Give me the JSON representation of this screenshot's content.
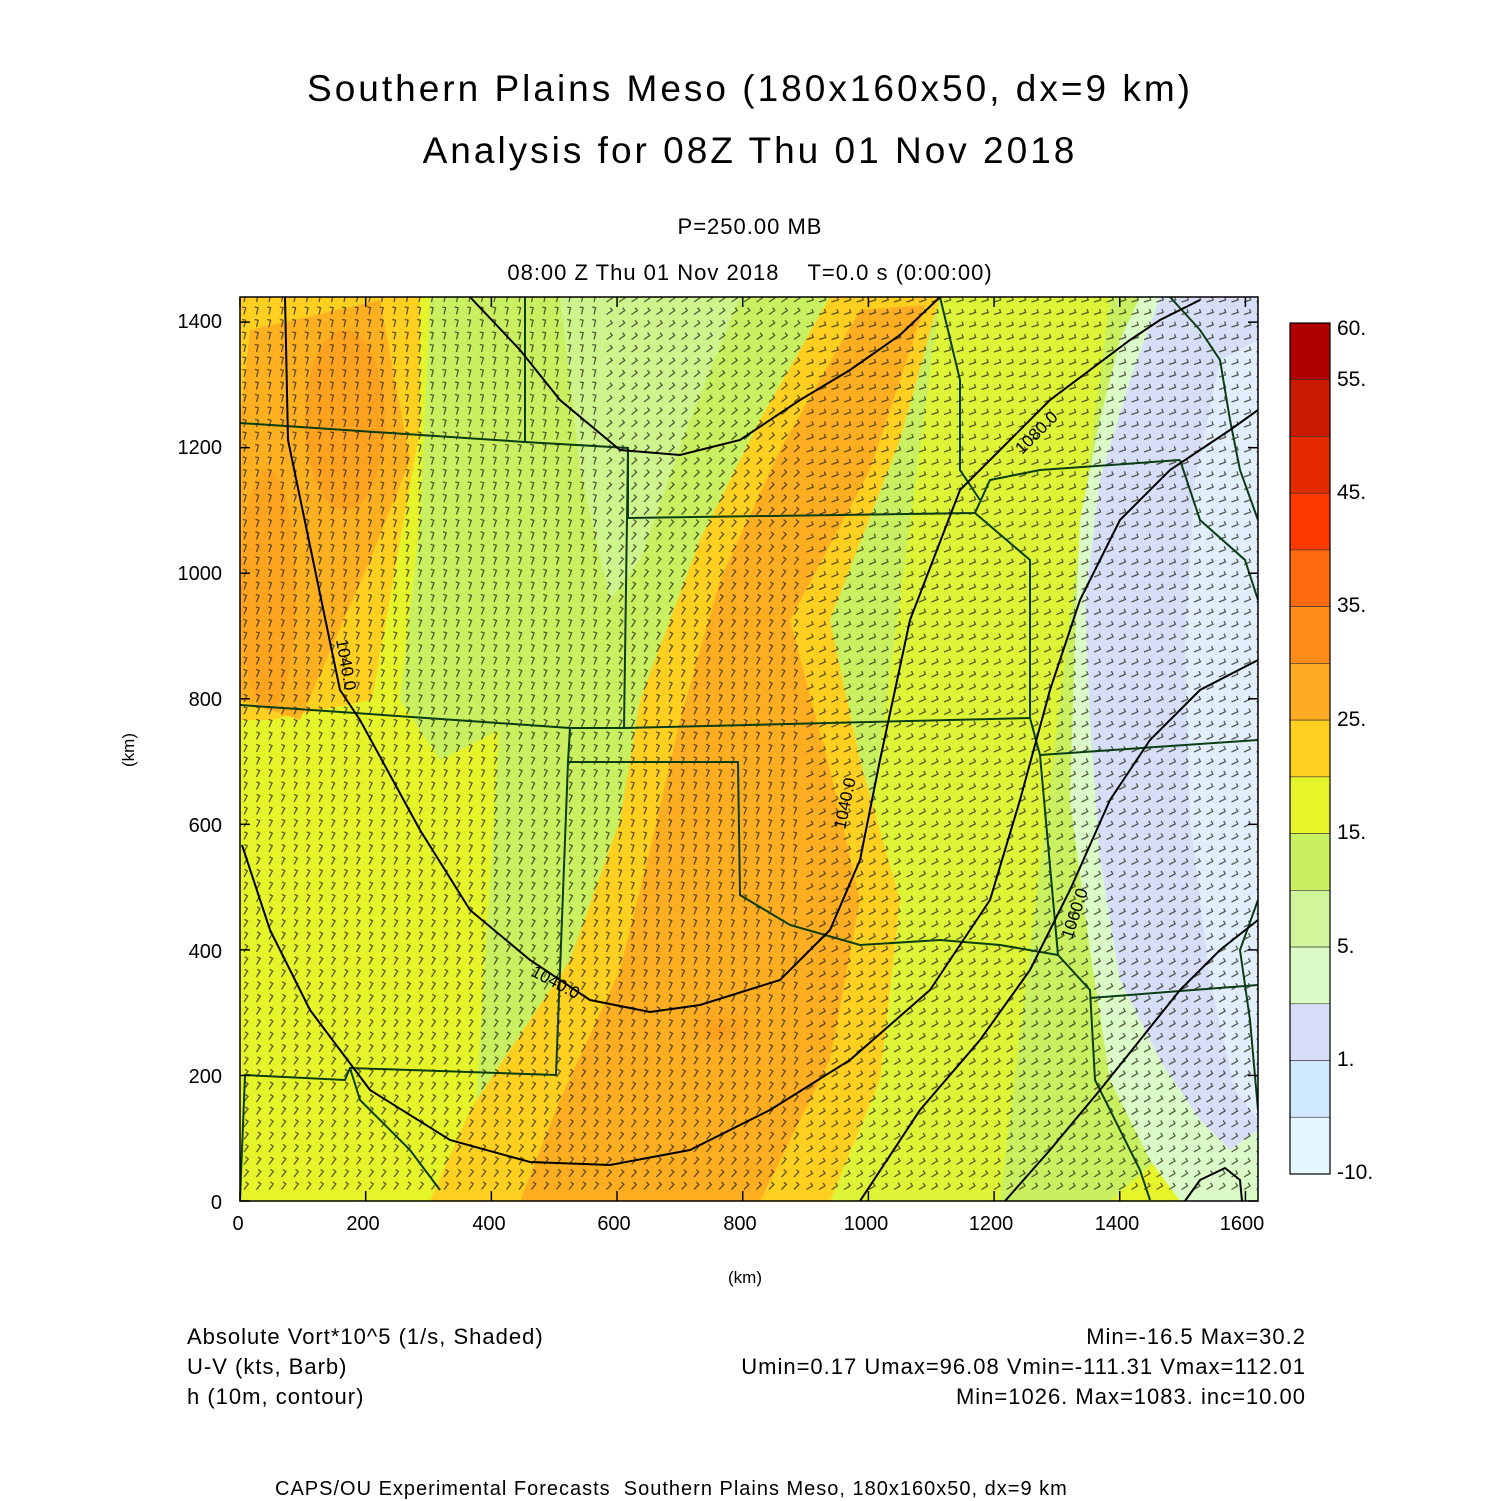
{
  "header": {
    "title_line1": "Southern Plains Meso (180x160x50, dx=9 km)",
    "title_line2": "Analysis for 08Z Thu 01 Nov 2018",
    "level": "P=250.00 MB",
    "valid_time": "08:00 Z Thu 01 Nov 2018    T=0.0 s (0:00:00)"
  },
  "axes": {
    "xlabel": "(km)",
    "ylabel": "(km)",
    "xticks": [
      "0",
      "200",
      "400",
      "600",
      "800",
      "1000",
      "1200",
      "1400",
      "1600"
    ],
    "yticks": [
      "0",
      "200",
      "400",
      "600",
      "800",
      "1000",
      "1200",
      "1400"
    ],
    "xrange": [
      0,
      1620
    ],
    "yrange": [
      0,
      1440
    ]
  },
  "colorbar": {
    "labels": [
      "60.",
      "55.",
      "45.",
      "35.",
      "25.",
      "15.",
      "5.",
      "1.",
      "-10."
    ],
    "colors": [
      "#b00000",
      "#cc1a00",
      "#e62a00",
      "#ff3a00",
      "#ff6a10",
      "#ff8c18",
      "#ffaa22",
      "#ffd020",
      "#e6f52a",
      "#c8f060",
      "#d0f59a",
      "#dafbc8",
      "#d6def8",
      "#d0e8ff",
      "#e6f6ff"
    ]
  },
  "contours": {
    "labels": [
      "1040.0",
      "1040.0",
      "1040.0",
      "1060.0",
      "1080.0"
    ]
  },
  "legend": {
    "field1_name": "Absolute Vort*10^5 (1/s, Shaded)",
    "field1_stats": "Min=-16.5 Max=30.2",
    "field2_name": "U-V (kts, Barb)",
    "field2_stats": "Umin=0.17 Umax=96.08 Vmin=-111.31 Vmax=112.01",
    "field3_name": "h (10m, contour)",
    "field3_stats": "Min=1026. Max=1083. inc=10.00"
  },
  "footer": {
    "text": "CAPS/OU Experimental Forecasts  Southern Plains Meso, 180x160x50, dx=9 km"
  }
}
